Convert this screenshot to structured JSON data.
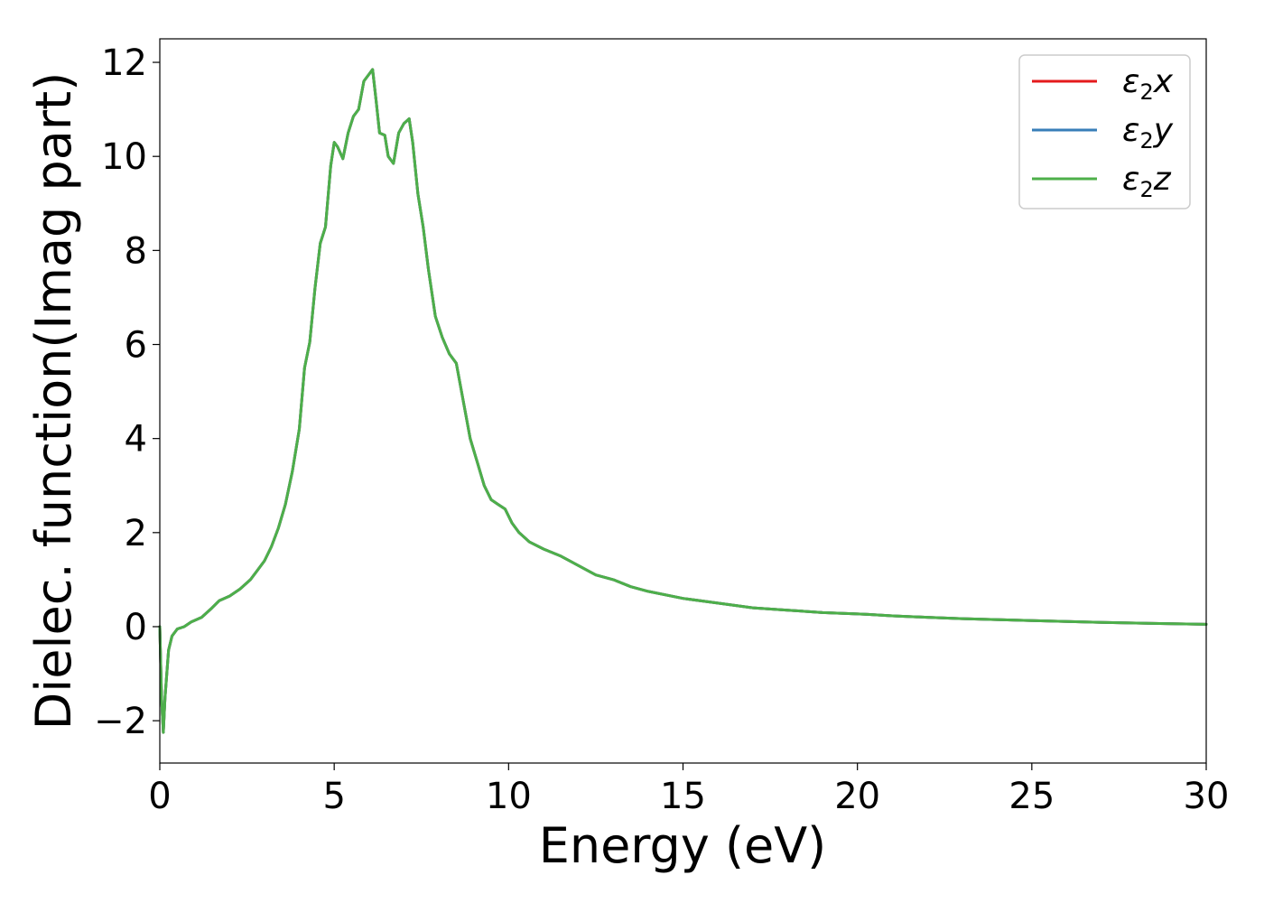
{
  "chart_data": {
    "type": "line",
    "xlabel": "Energy (eV)",
    "ylabel": "Dielec. function(Imag part)",
    "xlim": [
      0,
      30
    ],
    "ylim": [
      -2.9,
      12.5
    ],
    "xticks": [
      0,
      5,
      10,
      15,
      20,
      25,
      30
    ],
    "xtick_labels": [
      "0",
      "5",
      "10",
      "15",
      "20",
      "25",
      "30"
    ],
    "yticks": [
      -2,
      0,
      2,
      4,
      6,
      8,
      10,
      12
    ],
    "ytick_labels": [
      "−2",
      "0",
      "2",
      "4",
      "6",
      "8",
      "10",
      "12"
    ],
    "grid": false,
    "legend_position": "top-right",
    "x": [
      0.0,
      0.05,
      0.1,
      0.15,
      0.25,
      0.35,
      0.5,
      0.7,
      0.9,
      1.2,
      1.5,
      1.7,
      2.0,
      2.3,
      2.6,
      2.8,
      3.0,
      3.2,
      3.4,
      3.6,
      3.8,
      4.0,
      4.15,
      4.3,
      4.45,
      4.6,
      4.75,
      4.9,
      5.0,
      5.1,
      5.25,
      5.4,
      5.55,
      5.7,
      5.85,
      6.0,
      6.1,
      6.2,
      6.3,
      6.45,
      6.55,
      6.7,
      6.85,
      7.0,
      7.15,
      7.25,
      7.4,
      7.55,
      7.7,
      7.9,
      8.1,
      8.3,
      8.5,
      8.7,
      8.9,
      9.1,
      9.3,
      9.5,
      9.7,
      9.9,
      10.1,
      10.3,
      10.6,
      11.0,
      11.5,
      12.0,
      12.5,
      13.0,
      13.5,
      14.0,
      15.0,
      16.0,
      17.0,
      18.0,
      19.0,
      20.0,
      20.3,
      21.0,
      22.0,
      23.0,
      25.0,
      27.0,
      30.0
    ],
    "series": [
      {
        "name": "ε2x",
        "color": "#e41a1c",
        "values": [
          0.0,
          -1.5,
          -2.25,
          -1.5,
          -0.5,
          -0.2,
          -0.05,
          0.0,
          0.1,
          0.2,
          0.4,
          0.55,
          0.65,
          0.8,
          1.0,
          1.2,
          1.4,
          1.7,
          2.1,
          2.6,
          3.3,
          4.2,
          5.5,
          6.05,
          7.2,
          8.15,
          8.5,
          9.8,
          10.3,
          10.2,
          9.95,
          10.5,
          10.85,
          11.0,
          11.6,
          11.75,
          11.85,
          11.2,
          10.5,
          10.45,
          10.0,
          9.85,
          10.5,
          10.7,
          10.8,
          10.3,
          9.2,
          8.5,
          7.6,
          6.6,
          6.15,
          5.8,
          5.6,
          4.8,
          4.0,
          3.5,
          3.0,
          2.7,
          2.6,
          2.5,
          2.2,
          2.0,
          1.8,
          1.65,
          1.5,
          1.3,
          1.1,
          1.0,
          0.85,
          0.75,
          0.6,
          0.5,
          0.4,
          0.35,
          0.3,
          0.27,
          0.26,
          0.23,
          0.2,
          0.17,
          0.13,
          0.09,
          0.05
        ]
      },
      {
        "name": "ε2y",
        "color": "#377eb8",
        "values": [
          0.0,
          -1.5,
          -2.25,
          -1.5,
          -0.5,
          -0.2,
          -0.05,
          0.0,
          0.1,
          0.2,
          0.4,
          0.55,
          0.65,
          0.8,
          1.0,
          1.2,
          1.4,
          1.7,
          2.1,
          2.6,
          3.3,
          4.2,
          5.5,
          6.05,
          7.2,
          8.15,
          8.5,
          9.8,
          10.3,
          10.2,
          9.95,
          10.5,
          10.85,
          11.0,
          11.6,
          11.75,
          11.85,
          11.2,
          10.5,
          10.45,
          10.0,
          9.85,
          10.5,
          10.7,
          10.8,
          10.3,
          9.2,
          8.5,
          7.6,
          6.6,
          6.15,
          5.8,
          5.6,
          4.8,
          4.0,
          3.5,
          3.0,
          2.7,
          2.6,
          2.5,
          2.2,
          2.0,
          1.8,
          1.65,
          1.5,
          1.3,
          1.1,
          1.0,
          0.85,
          0.75,
          0.6,
          0.5,
          0.4,
          0.35,
          0.3,
          0.27,
          0.26,
          0.23,
          0.2,
          0.17,
          0.13,
          0.09,
          0.05
        ]
      },
      {
        "name": "ε2z",
        "color": "#4daf4a",
        "values": [
          0.0,
          -1.5,
          -2.25,
          -1.5,
          -0.5,
          -0.2,
          -0.05,
          0.0,
          0.1,
          0.2,
          0.4,
          0.55,
          0.65,
          0.8,
          1.0,
          1.2,
          1.4,
          1.7,
          2.1,
          2.6,
          3.3,
          4.2,
          5.5,
          6.05,
          7.2,
          8.15,
          8.5,
          9.8,
          10.3,
          10.2,
          9.95,
          10.5,
          10.85,
          11.0,
          11.6,
          11.75,
          11.85,
          11.2,
          10.5,
          10.45,
          10.0,
          9.85,
          10.5,
          10.7,
          10.8,
          10.3,
          9.2,
          8.5,
          7.6,
          6.6,
          6.15,
          5.8,
          5.6,
          4.8,
          4.0,
          3.5,
          3.0,
          2.7,
          2.6,
          2.5,
          2.2,
          2.0,
          1.8,
          1.65,
          1.5,
          1.3,
          1.1,
          1.0,
          0.85,
          0.75,
          0.6,
          0.5,
          0.4,
          0.35,
          0.3,
          0.27,
          0.26,
          0.23,
          0.2,
          0.17,
          0.13,
          0.09,
          0.05
        ]
      }
    ]
  }
}
